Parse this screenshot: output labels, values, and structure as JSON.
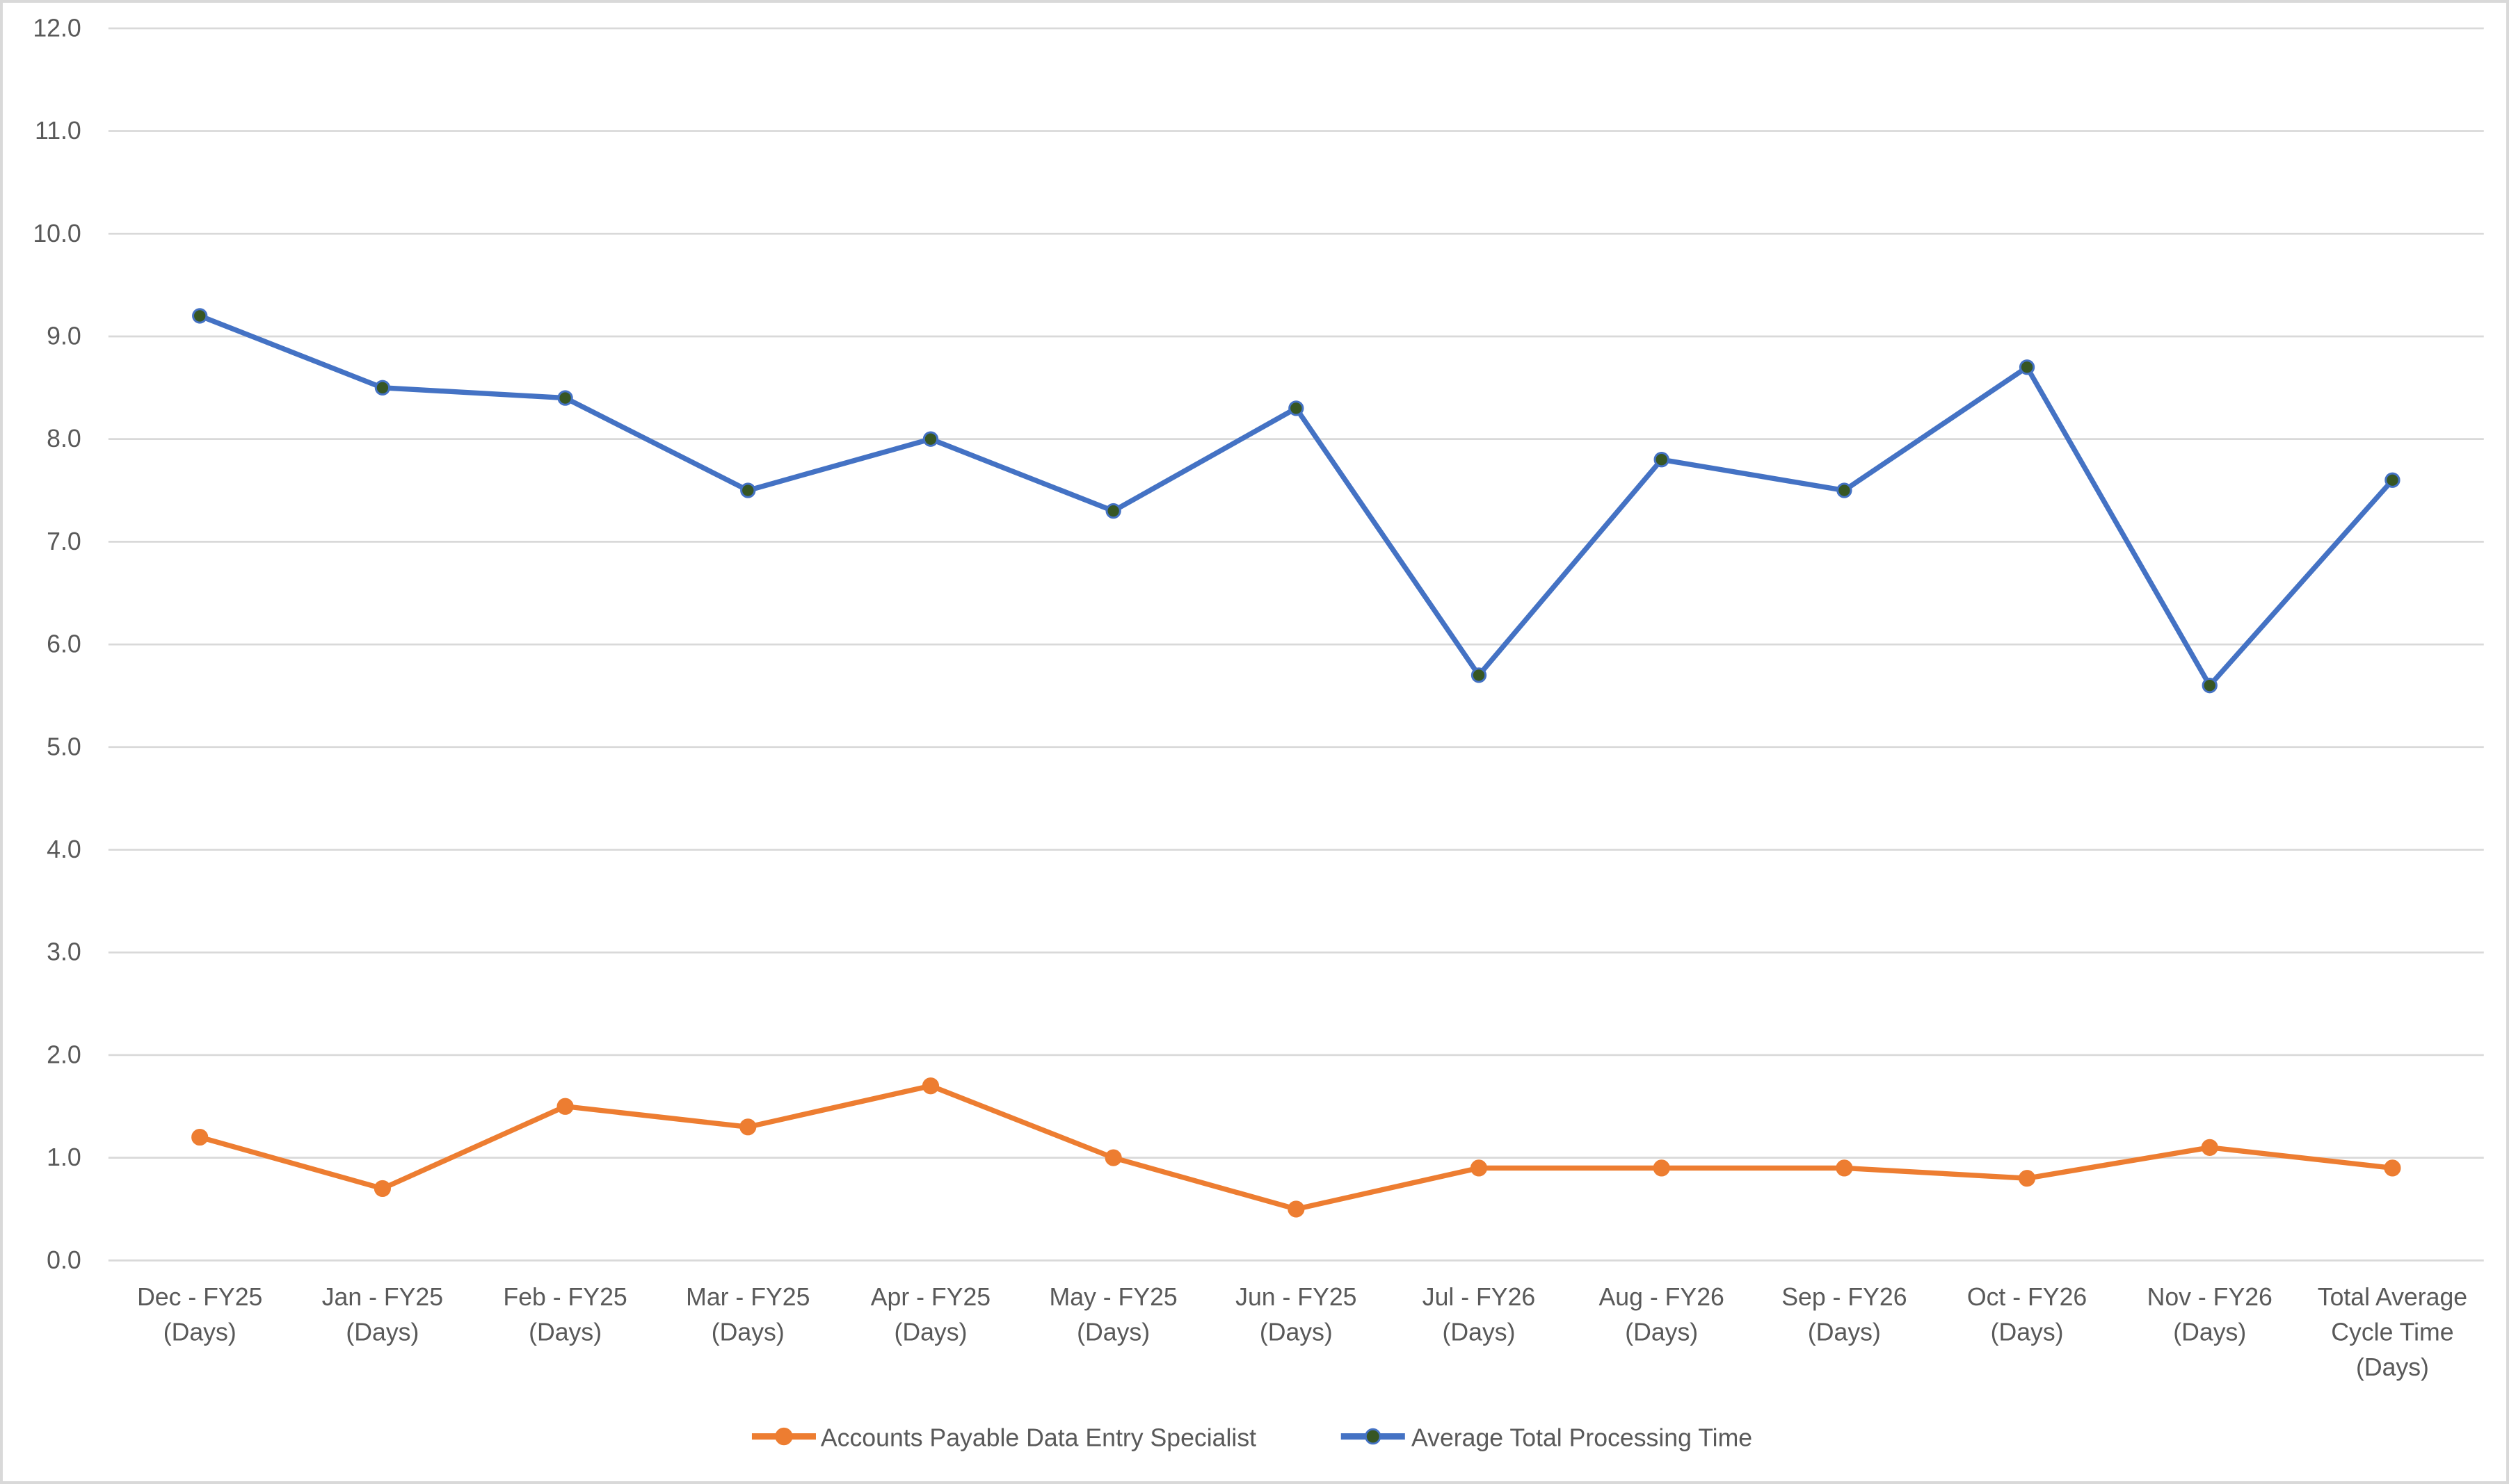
{
  "chart_data": {
    "type": "line",
    "title": "",
    "xlabel": "",
    "ylabel": "",
    "ylim": [
      0,
      12
    ],
    "y_ticks": [
      "0.0",
      "1.0",
      "2.0",
      "3.0",
      "4.0",
      "5.0",
      "6.0",
      "7.0",
      "8.0",
      "9.0",
      "10.0",
      "11.0",
      "12.0"
    ],
    "grid": true,
    "legend_position": "bottom",
    "categories": [
      [
        "Dec - FY25",
        "(Days)"
      ],
      [
        "Jan - FY25",
        "(Days)"
      ],
      [
        "Feb - FY25",
        "(Days)"
      ],
      [
        "Mar - FY25",
        "(Days)"
      ],
      [
        "Apr - FY25",
        "(Days)"
      ],
      [
        "May - FY25",
        "(Days)"
      ],
      [
        "Jun - FY25",
        "(Days)"
      ],
      [
        "Jul - FY26",
        "(Days)"
      ],
      [
        "Aug - FY26",
        "(Days)"
      ],
      [
        "Sep - FY26",
        "(Days)"
      ],
      [
        "Oct - FY26",
        "(Days)"
      ],
      [
        "Nov - FY26",
        "(Days)"
      ],
      [
        "Total Average",
        "Cycle Time",
        "(Days)"
      ]
    ],
    "series": [
      {
        "name": "Accounts Payable Data Entry Specialist",
        "color": "#ED7D31",
        "marker_fill": "#ED7D31",
        "values": [
          1.2,
          0.7,
          1.5,
          1.3,
          1.7,
          1.0,
          0.5,
          0.9,
          0.9,
          0.9,
          0.8,
          1.1,
          0.9
        ]
      },
      {
        "name": "Average Total Processing Time",
        "color": "#4472C4",
        "marker_fill": "#375623",
        "values": [
          9.2,
          8.5,
          8.4,
          7.5,
          8.0,
          7.3,
          8.3,
          5.7,
          7.8,
          7.5,
          8.7,
          5.6,
          7.6
        ]
      }
    ]
  },
  "legend": {
    "items": [
      {
        "label": "Accounts Payable Data Entry Specialist"
      },
      {
        "label": "Average Total Processing Time"
      }
    ]
  }
}
